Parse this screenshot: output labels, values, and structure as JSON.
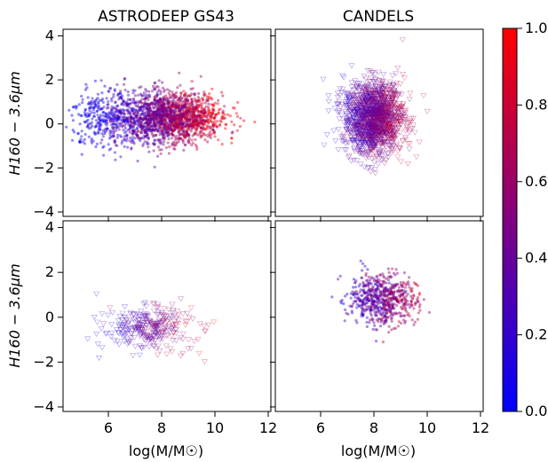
{
  "figure": {
    "colorbar": {
      "ticks": [
        "0.0",
        "0.2",
        "0.4",
        "0.6",
        "0.8",
        "1.0"
      ],
      "range": [
        0,
        1
      ],
      "colors": {
        "low": "#0000ff",
        "high": "#ff0000"
      }
    }
  },
  "chart_data": [
    {
      "panel": "top-left",
      "type": "scatter",
      "title": "ASTRODEEP GS43",
      "xlabel": "",
      "ylabel": "H160 − 3.6μm",
      "xlim": [
        4.3,
        12.1
      ],
      "ylim": [
        -4.2,
        4.3
      ],
      "xticks": [
        6,
        8,
        10,
        12
      ],
      "yticks": [
        -4,
        -2,
        0,
        2,
        4
      ],
      "marker": "filled-circle",
      "clusters": [
        {
          "x_center": 8.3,
          "y_center": 0.3,
          "x_spread": 1.3,
          "y_spread": 0.75,
          "count": 1800,
          "color_value_mean": 0.55
        },
        {
          "x_center": 6.0,
          "y_center": 0.2,
          "x_spread": 1.0,
          "y_spread": 0.9,
          "count": 350,
          "color_value_mean": 0.15
        }
      ]
    },
    {
      "panel": "top-right",
      "type": "scatter",
      "title": "CANDELS",
      "xlabel": "",
      "ylabel": "",
      "xlim": [
        4.3,
        12.1
      ],
      "ylim": [
        -4.2,
        4.3
      ],
      "xticks": [
        6,
        8,
        10,
        12
      ],
      "yticks": [
        -4,
        -2,
        0,
        2,
        4
      ],
      "marker": "open-triangle-down",
      "clusters": [
        {
          "x_center": 8.0,
          "y_center": 0.3,
          "x_spread": 0.75,
          "y_spread": 1.1,
          "count": 1600,
          "color_value_mean": 0.45
        }
      ]
    },
    {
      "panel": "bottom-left",
      "type": "scatter",
      "title": "",
      "xlabel": "log(M/M☉)",
      "ylabel": "H160 − 3.6μm",
      "xlim": [
        4.3,
        12.1
      ],
      "ylim": [
        -4.2,
        4.3
      ],
      "xticks": [
        6,
        8,
        10,
        12
      ],
      "yticks": [
        -4,
        -2,
        0,
        2,
        4
      ],
      "marker": "open-triangle-down",
      "clusters": [
        {
          "x_center": 7.5,
          "y_center": -0.5,
          "x_spread": 1.1,
          "y_spread": 0.65,
          "count": 320,
          "color_value_mean": 0.4
        }
      ]
    },
    {
      "panel": "bottom-right",
      "type": "scatter",
      "title": "",
      "xlabel": "log(M/M☉)",
      "ylabel": "",
      "xlim": [
        4.3,
        12.1
      ],
      "ylim": [
        -4.2,
        4.3
      ],
      "xticks": [
        6,
        8,
        10,
        12
      ],
      "yticks": [
        -4,
        -2,
        0,
        2,
        4
      ],
      "marker": "filled-circle",
      "clusters": [
        {
          "x_center": 8.3,
          "y_center": 0.8,
          "x_spread": 0.85,
          "y_spread": 0.75,
          "count": 650,
          "color_value_mean": 0.45
        }
      ]
    }
  ]
}
